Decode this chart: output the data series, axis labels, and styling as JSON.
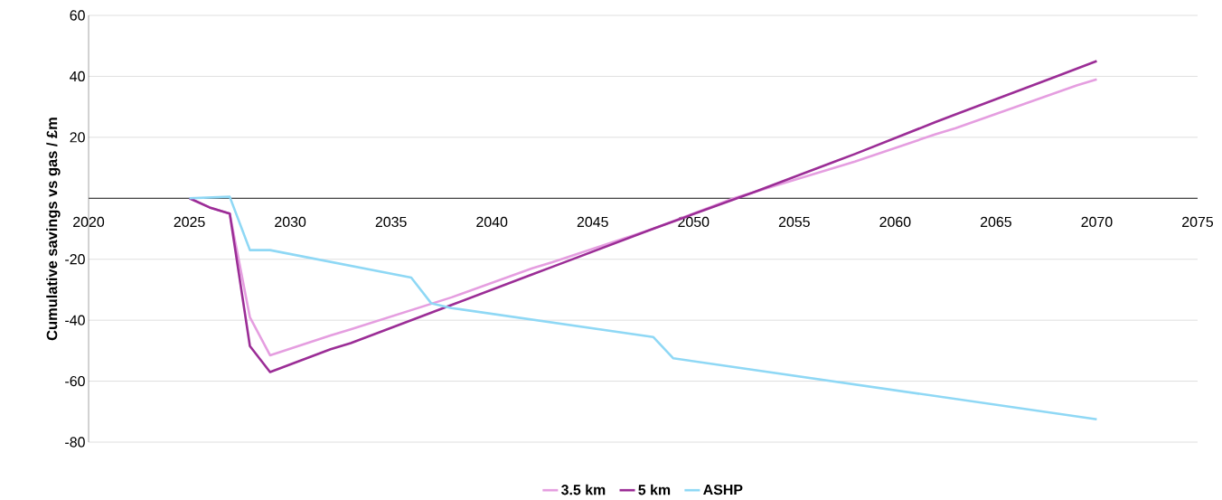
{
  "chart_data": {
    "type": "line",
    "ylabel": "Cumulative savings vs gas / £m",
    "series": [
      {
        "name": "3.5 km",
        "color": "#e59ee0",
        "x": [
          2025,
          2026,
          2027,
          2028,
          2029,
          2032,
          2033,
          2038,
          2042,
          2043,
          2048,
          2052,
          2057,
          2058,
          2062,
          2063,
          2069,
          2070
        ],
        "values": [
          0,
          -3,
          -5,
          -39,
          -51.5,
          -45,
          -43,
          -32.5,
          -23,
          -21,
          -10,
          0,
          10,
          12,
          21,
          23,
          37,
          39
        ]
      },
      {
        "name": "5 km",
        "color": "#9b2d96",
        "x": [
          2025,
          2026,
          2027,
          2028,
          2029,
          2032,
          2033,
          2037,
          2038,
          2042,
          2043,
          2048,
          2053,
          2057,
          2058,
          2062,
          2063,
          2068,
          2069,
          2070
        ],
        "values": [
          0,
          -3,
          -5,
          -48.5,
          -57,
          -49.5,
          -47.5,
          -37.5,
          -35,
          -25,
          -22.5,
          -10,
          2,
          12,
          14.5,
          25,
          27.5,
          40,
          42.5,
          45
        ]
      },
      {
        "name": "ASHP",
        "color": "#8fd8f5",
        "x": [
          2025,
          2027,
          2028,
          2029,
          2036,
          2037,
          2038,
          2048,
          2049,
          2070
        ],
        "values": [
          0,
          0.5,
          -17,
          -17,
          -26,
          -34.5,
          -36,
          -45.5,
          -52.5,
          -72.5
        ]
      }
    ],
    "xlim": [
      2020,
      2075
    ],
    "xticks": [
      2020,
      2025,
      2030,
      2035,
      2040,
      2045,
      2050,
      2055,
      2060,
      2065,
      2070,
      2075
    ],
    "ylim": [
      -80,
      60
    ],
    "yticks": [
      -80,
      -60,
      -40,
      -20,
      {
        "value": 0,
        "label": null
      },
      20,
      40,
      60
    ],
    "grid": "y",
    "legend": "bottom",
    "marker": "none",
    "line_style": "solid"
  }
}
